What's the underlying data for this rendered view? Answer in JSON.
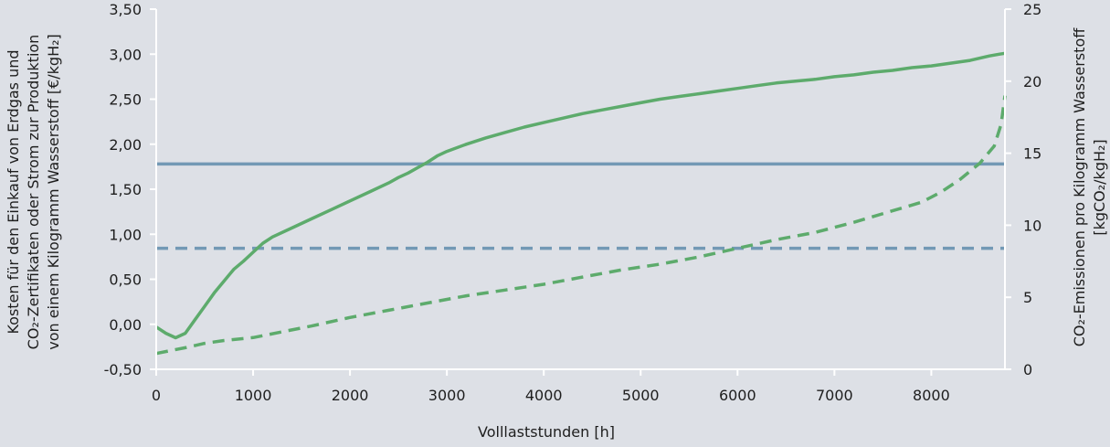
{
  "chart_data": {
    "type": "line",
    "xlabel": "Volllaststunden [h]",
    "ylabel_left": {
      "lines": [
        "Kosten für den Einkauf von Erdgas und",
        "CO₂-Zertifikaten oder Strom zur Produktion",
        "von einem Kilogramm Wasserstoff [€/kgH₂]"
      ]
    },
    "ylabel_right": {
      "lines": [
        "CO₂-Emissionen pro Kilogramm Wasserstoff",
        "[kgCO₂/kgH₂]"
      ]
    },
    "xlim": [
      0,
      8760
    ],
    "ylim_left": [
      -0.5,
      3.5
    ],
    "ylim_right": [
      0,
      25
    ],
    "x_ticks": [
      0,
      1000,
      2000,
      3000,
      4000,
      5000,
      6000,
      7000,
      8000
    ],
    "x_tick_labels": [
      "0",
      "1000",
      "2000",
      "3000",
      "4000",
      "5000",
      "6000",
      "7000",
      "8000"
    ],
    "y_left_ticks": [
      -0.5,
      0,
      0.5,
      1,
      1.5,
      2,
      2.5,
      3,
      3.5
    ],
    "y_left_tick_labels": [
      "-0,50",
      "0,00",
      "0,50",
      "1,00",
      "1,50",
      "2,00",
      "2,50",
      "3,00",
      "3,50"
    ],
    "y_right_ticks": [
      0,
      5,
      10,
      15,
      20,
      25
    ],
    "y_right_tick_labels": [
      "0",
      "5",
      "10",
      "15",
      "20",
      "25"
    ],
    "grid": false,
    "colors": {
      "green": "#5dab6c",
      "blue": "#7399b5",
      "background": "#dde0e6"
    },
    "series": [
      {
        "axis": "left",
        "style": "solid",
        "color": "#7399b5",
        "x": [
          0,
          8760
        ],
        "y": [
          1.78,
          1.78
        ]
      },
      {
        "axis": "right",
        "style": "dashed",
        "color": "#7399b5",
        "x": [
          0,
          8760
        ],
        "y": [
          8.4,
          8.4
        ]
      },
      {
        "axis": "left",
        "style": "solid",
        "color": "#5dab6c",
        "x": [
          0,
          100,
          200,
          300,
          400,
          500,
          600,
          700,
          800,
          900,
          1000,
          1100,
          1200,
          1400,
          1600,
          1800,
          2000,
          2200,
          2400,
          2500,
          2600,
          2700,
          2800,
          2900,
          3000,
          3200,
          3400,
          3600,
          3800,
          4000,
          4200,
          4400,
          4600,
          4800,
          5000,
          5200,
          5400,
          5600,
          5800,
          6000,
          6200,
          6400,
          6600,
          6800,
          7000,
          7200,
          7400,
          7600,
          7800,
          8000,
          8200,
          8400,
          8600,
          8700,
          8760
        ],
        "y": [
          -0.03,
          -0.1,
          -0.15,
          -0.1,
          0.05,
          0.2,
          0.35,
          0.48,
          0.61,
          0.7,
          0.8,
          0.9,
          0.97,
          1.07,
          1.17,
          1.27,
          1.37,
          1.47,
          1.57,
          1.63,
          1.68,
          1.74,
          1.8,
          1.87,
          1.92,
          2.0,
          2.07,
          2.13,
          2.19,
          2.24,
          2.29,
          2.34,
          2.38,
          2.42,
          2.46,
          2.5,
          2.53,
          2.56,
          2.59,
          2.62,
          2.65,
          2.68,
          2.7,
          2.72,
          2.75,
          2.77,
          2.8,
          2.82,
          2.85,
          2.87,
          2.9,
          2.93,
          2.98,
          3.0,
          3.01
        ]
      },
      {
        "axis": "right",
        "style": "dashed",
        "color": "#5dab6c",
        "x": [
          0,
          150,
          300,
          500,
          700,
          1000,
          1300,
          1600,
          2000,
          2400,
          2800,
          3200,
          3600,
          4000,
          4400,
          4800,
          5200,
          5600,
          6000,
          6400,
          6800,
          7200,
          7600,
          7900,
          8100,
          8300,
          8500,
          8650,
          8720,
          8760
        ],
        "y": [
          1.1,
          1.3,
          1.5,
          1.8,
          2.0,
          2.2,
          2.6,
          3.0,
          3.6,
          4.1,
          4.6,
          5.1,
          5.5,
          5.9,
          6.4,
          6.9,
          7.3,
          7.8,
          8.4,
          9.0,
          9.5,
          10.2,
          11.0,
          11.6,
          12.3,
          13.2,
          14.3,
          15.5,
          17.0,
          19.0
        ]
      }
    ]
  }
}
